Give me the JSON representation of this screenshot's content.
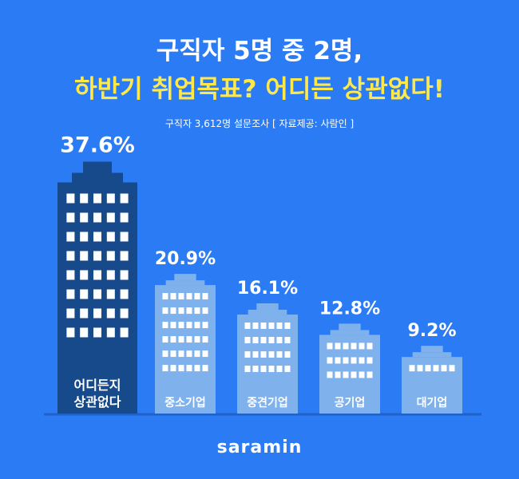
{
  "header": {
    "title_line1": "구직자 5명 중 2명,",
    "title_line2": "하반기 취업목표? 어디든 상관없다!",
    "subtitle": "구직자 3,612명 설문조사 [ 자료제공: 사람인 ]"
  },
  "brand": {
    "logo": "saramin"
  },
  "colors": {
    "background": "#2b7bf5",
    "highlight_building": "#174a8b",
    "building": "#7fb1ec",
    "window": "#ffffff",
    "title_accent": "#ffe94a"
  },
  "chart_data": {
    "type": "bar",
    "categories": [
      "어디든지\n상관없다",
      "중소기업",
      "중견기업",
      "공기업",
      "대기업"
    ],
    "values": [
      37.6,
      20.9,
      16.1,
      12.8,
      9.2
    ],
    "unit": "%",
    "data_labels": [
      "37.6%",
      "20.9%",
      "16.1%",
      "12.8%",
      "9.2%"
    ],
    "highlight_index": 0,
    "grid": false,
    "legend": "none"
  }
}
